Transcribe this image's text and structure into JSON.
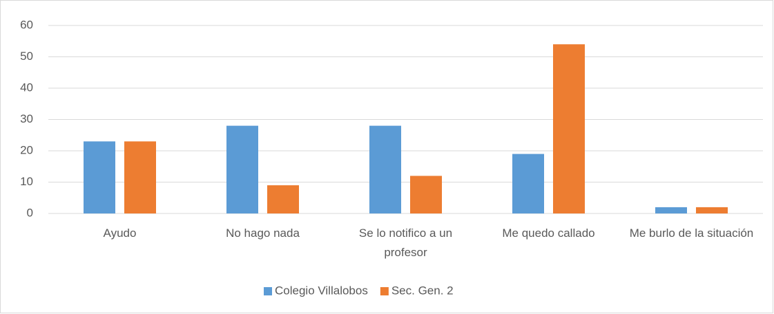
{
  "chart_data": {
    "type": "bar",
    "categories": [
      "Ayudo",
      "No hago nada",
      "Se lo notifico a un profesor",
      "Me quedo callado",
      "Me burlo de la situación"
    ],
    "series": [
      {
        "name": "Colegio Villalobos",
        "color": "#5b9bd5",
        "values": [
          23,
          28,
          28,
          19,
          2
        ]
      },
      {
        "name": "Sec. Gen. 2",
        "color": "#ed7d31",
        "values": [
          23,
          9,
          12,
          54,
          2
        ]
      }
    ],
    "ylim": [
      0,
      60
    ],
    "yticks": [
      0,
      10,
      20,
      30,
      40,
      50,
      60
    ],
    "grid": true,
    "legend": "bottom"
  }
}
